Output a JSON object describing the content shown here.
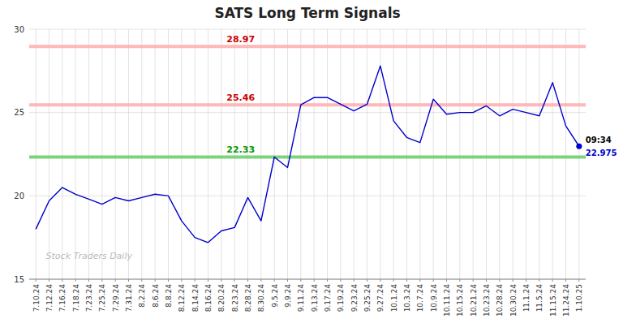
{
  "chart_data": {
    "type": "line",
    "title": "SATS Long Term Signals",
    "categories": [
      "7.10.24",
      "7.12.24",
      "7.16.24",
      "7.18.24",
      "7.23.24",
      "7.25.24",
      "7.29.24",
      "7.31.24",
      "8.2.24",
      "8.6.24",
      "8.8.24",
      "8.12.24",
      "8.14.24",
      "8.16.24",
      "8.20.24",
      "8.23.24",
      "8.28.24",
      "8.30.24",
      "9.5.24",
      "9.9.24",
      "9.11.24",
      "9.13.24",
      "9.17.24",
      "9.19.24",
      "9.23.24",
      "9.25.24",
      "9.27.24",
      "10.1.24",
      "10.3.24",
      "10.7.24",
      "10.9.24",
      "10.11.24",
      "10.15.24",
      "10.21.24",
      "10.23.24",
      "10.28.24",
      "10.30.24",
      "11.1.24",
      "11.5.24",
      "11.15.24",
      "11.24.24",
      "1.10.25"
    ],
    "values": [
      18.0,
      19.7,
      20.5,
      20.1,
      19.8,
      19.5,
      19.9,
      19.7,
      19.9,
      20.1,
      20.0,
      18.5,
      17.5,
      17.2,
      17.9,
      18.1,
      19.9,
      18.5,
      22.33,
      21.7,
      25.46,
      25.9,
      25.9,
      25.5,
      25.1,
      25.5,
      27.8,
      24.5,
      23.5,
      23.2,
      25.8,
      24.9,
      25.0,
      25.0,
      25.4,
      24.8,
      25.2,
      25.0,
      24.8,
      26.8,
      24.2,
      22.975
    ],
    "color": "#0000cc",
    "ylim": [
      15,
      30
    ],
    "yticks": [
      15,
      20,
      25,
      30
    ],
    "grid": true,
    "hlines": [
      {
        "value": 28.97,
        "label": "28.97",
        "color": "#ffaaaa",
        "label_color": "#cc0000"
      },
      {
        "value": 25.46,
        "label": "25.46",
        "color": "#ffaaaa",
        "label_color": "#cc0000"
      },
      {
        "value": 22.33,
        "label": "22.33",
        "color": "#66cc66",
        "label_color": "#009900"
      }
    ],
    "annotations": [
      {
        "text": "09:34",
        "color": "#000000"
      },
      {
        "text": "22.975",
        "color": "#0000cc"
      }
    ],
    "watermark": "Stock Traders Daily",
    "watermark_color": "#bbbbbb"
  }
}
